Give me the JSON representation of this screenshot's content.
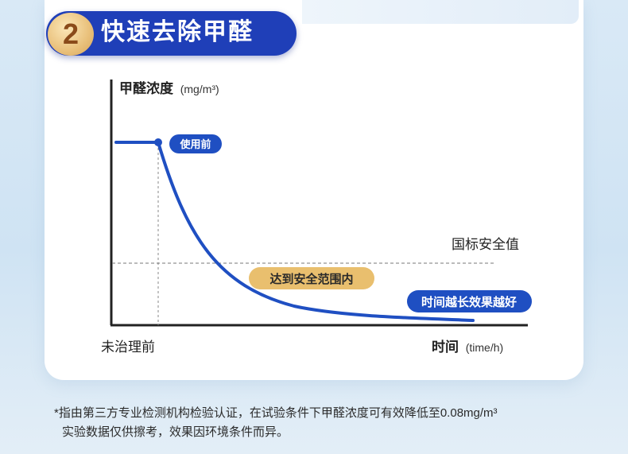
{
  "header": {
    "number": "2",
    "title": "快速去除甲醛"
  },
  "chart_data": {
    "type": "line",
    "ylabel_bold": "甲醛浓度",
    "ylabel_unit": "(mg/m³)",
    "xlabel_bold": "时间",
    "xlabel_unit": "(time/h)",
    "x_start_label": "未治理前",
    "threshold_label": "国标安全值",
    "annotations": {
      "before_use": "使用前",
      "safe_range": "达到安全范围内",
      "longer_better": "时间越长效果越好"
    },
    "colors": {
      "curve": "#1f4fc2",
      "safe_pill": "#e9bf6e",
      "blue_pill": "#1f4fc2"
    }
  },
  "footnote": {
    "line1": "*指由第三方专业检测机构检验认证，在试验条件下甲醛浓度可有效降低至0.08mg/m³",
    "line2": "实验数据仅供擦考，效果因环境条件而异。"
  }
}
